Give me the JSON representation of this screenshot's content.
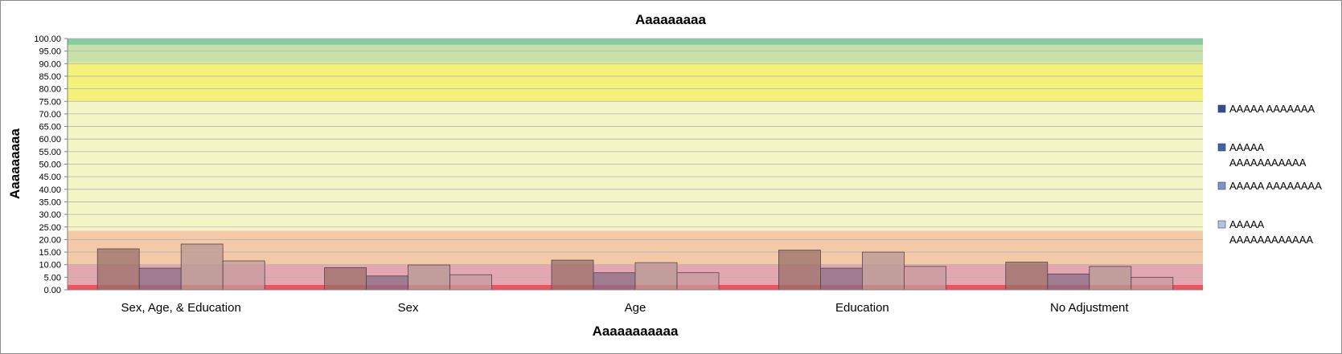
{
  "chart_data": {
    "type": "bar",
    "title": "Aaaaaaaaa",
    "xlabel": "Aaaaaaaaaaa",
    "ylabel": "Aaaaaaaaa",
    "ylim": [
      0,
      100
    ],
    "ytick_step": 5,
    "ytick_labels": [
      "0.00",
      "5.00",
      "10.00",
      "15.00",
      "20.00",
      "25.00",
      "30.00",
      "35.00",
      "40.00",
      "45.00",
      "50.00",
      "55.00",
      "60.00",
      "65.00",
      "70.00",
      "75.00",
      "80.00",
      "85.00",
      "90.00",
      "95.00",
      "100.00"
    ],
    "grid": true,
    "legend_position": "right",
    "categories": [
      "Sex, Age, & Education",
      "Sex",
      "Age",
      "Education",
      "No Adjustment"
    ],
    "series": [
      {
        "name": "AAAAA AAAAAAA",
        "values": [
          16.3,
          8.8,
          11.8,
          15.8,
          11.0
        ]
      },
      {
        "name": "AAAAA AAAAAAAAAAA",
        "values": [
          8.6,
          5.5,
          6.8,
          8.6,
          6.3
        ]
      },
      {
        "name": "AAAAA AAAAAAAA",
        "values": [
          18.2,
          9.9,
          10.8,
          15.0,
          9.3
        ]
      },
      {
        "name": "AAAAA AAAAAAAAAAAA",
        "values": [
          11.5,
          6.0,
          6.8,
          9.3,
          5.0
        ]
      }
    ],
    "background_bands": [
      {
        "from": 0,
        "to": 2,
        "color": "#ee3f4f"
      },
      {
        "from": 2,
        "to": 10,
        "color": "#e09fa6"
      },
      {
        "from": 10,
        "to": 23.5,
        "color": "#f2c39d"
      },
      {
        "from": 23.5,
        "to": 75,
        "color": "#f3f5c2"
      },
      {
        "from": 75,
        "to": 90.5,
        "color": "#f4f16e"
      },
      {
        "from": 90.5,
        "to": 97.5,
        "color": "#c0dfa0"
      },
      {
        "from": 97.5,
        "to": 100,
        "color": "#77c793"
      }
    ],
    "colors": {
      "series_1": "#9a6f6a",
      "series_2": "#8a6d86",
      "series_3": "#b89a94",
      "series_4": "#c79b9d",
      "legend_1": "#2f4f8f",
      "legend_2": "#3e64a8",
      "legend_3": "#7f93cc",
      "legend_4": "#b5c1e5"
    }
  }
}
